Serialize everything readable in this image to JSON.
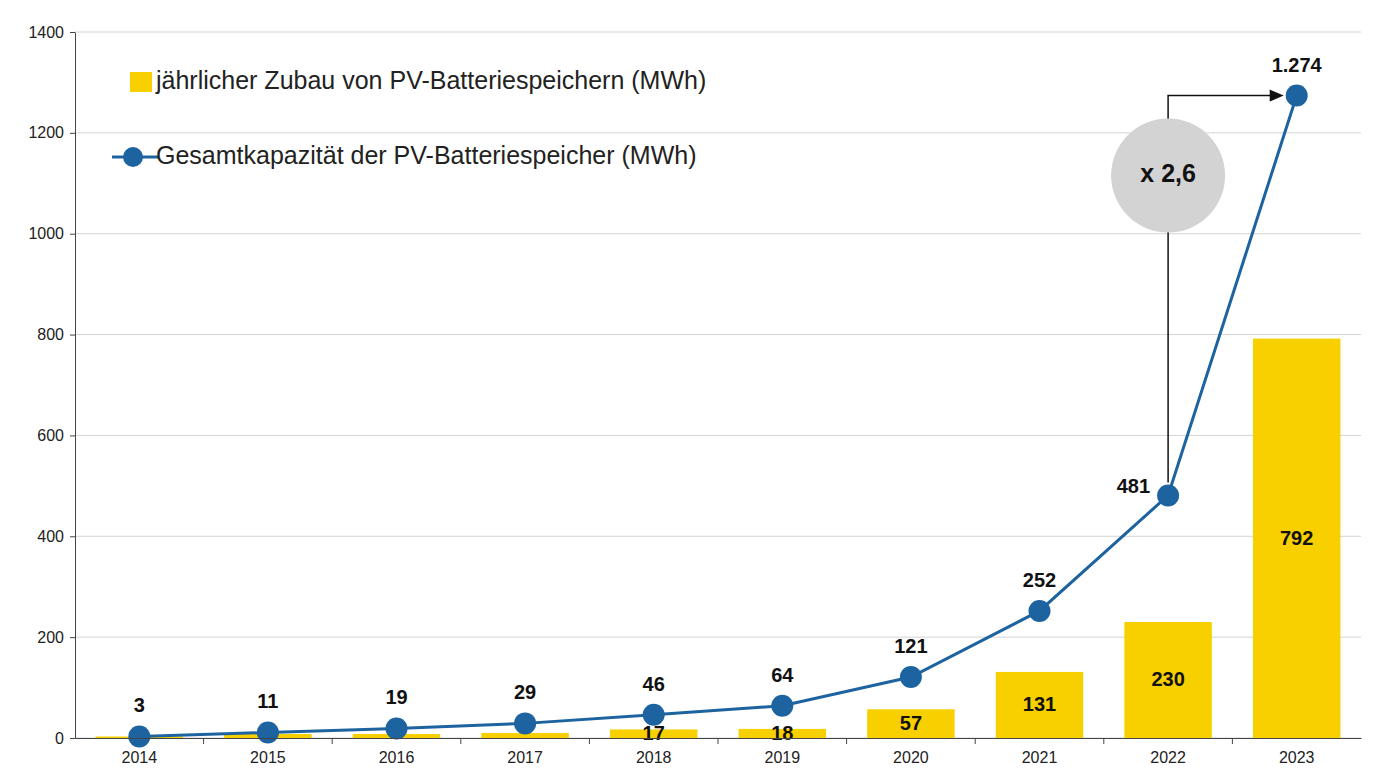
{
  "chart_data": {
    "type": "bar",
    "categories": [
      "2014",
      "2015",
      "2016",
      "2017",
      "2018",
      "2019",
      "2020",
      "2021",
      "2022",
      "2023"
    ],
    "series": [
      {
        "name": "jährlicher Zubau von PV-Batteriespeichern (MWh)",
        "type": "bar",
        "color": "#f8d000",
        "values": [
          3,
          8,
          8,
          10,
          17,
          18,
          57,
          131,
          230,
          792
        ],
        "value_labels": [
          null,
          null,
          null,
          null,
          "17",
          "18",
          "57",
          "131",
          "230",
          "792"
        ]
      },
      {
        "name": "Gesamtkapazität der PV-Batteriespeicher (MWh)",
        "type": "line",
        "color": "#1d63a0",
        "marker": "circle",
        "values": [
          3,
          11,
          19,
          29,
          46,
          64,
          121,
          252,
          481,
          1274
        ],
        "value_labels": [
          "3",
          "11",
          "19",
          "29",
          "46",
          "64",
          "121",
          "252",
          "481",
          "1.274"
        ]
      }
    ],
    "ylim": [
      0,
      1400
    ],
    "yticks": [
      0,
      200,
      400,
      600,
      800,
      1000,
      1200,
      1400
    ],
    "grid": true,
    "legend": "upper left",
    "data_labels": true,
    "annotations": [
      {
        "text": "x 2,6"
      }
    ]
  }
}
